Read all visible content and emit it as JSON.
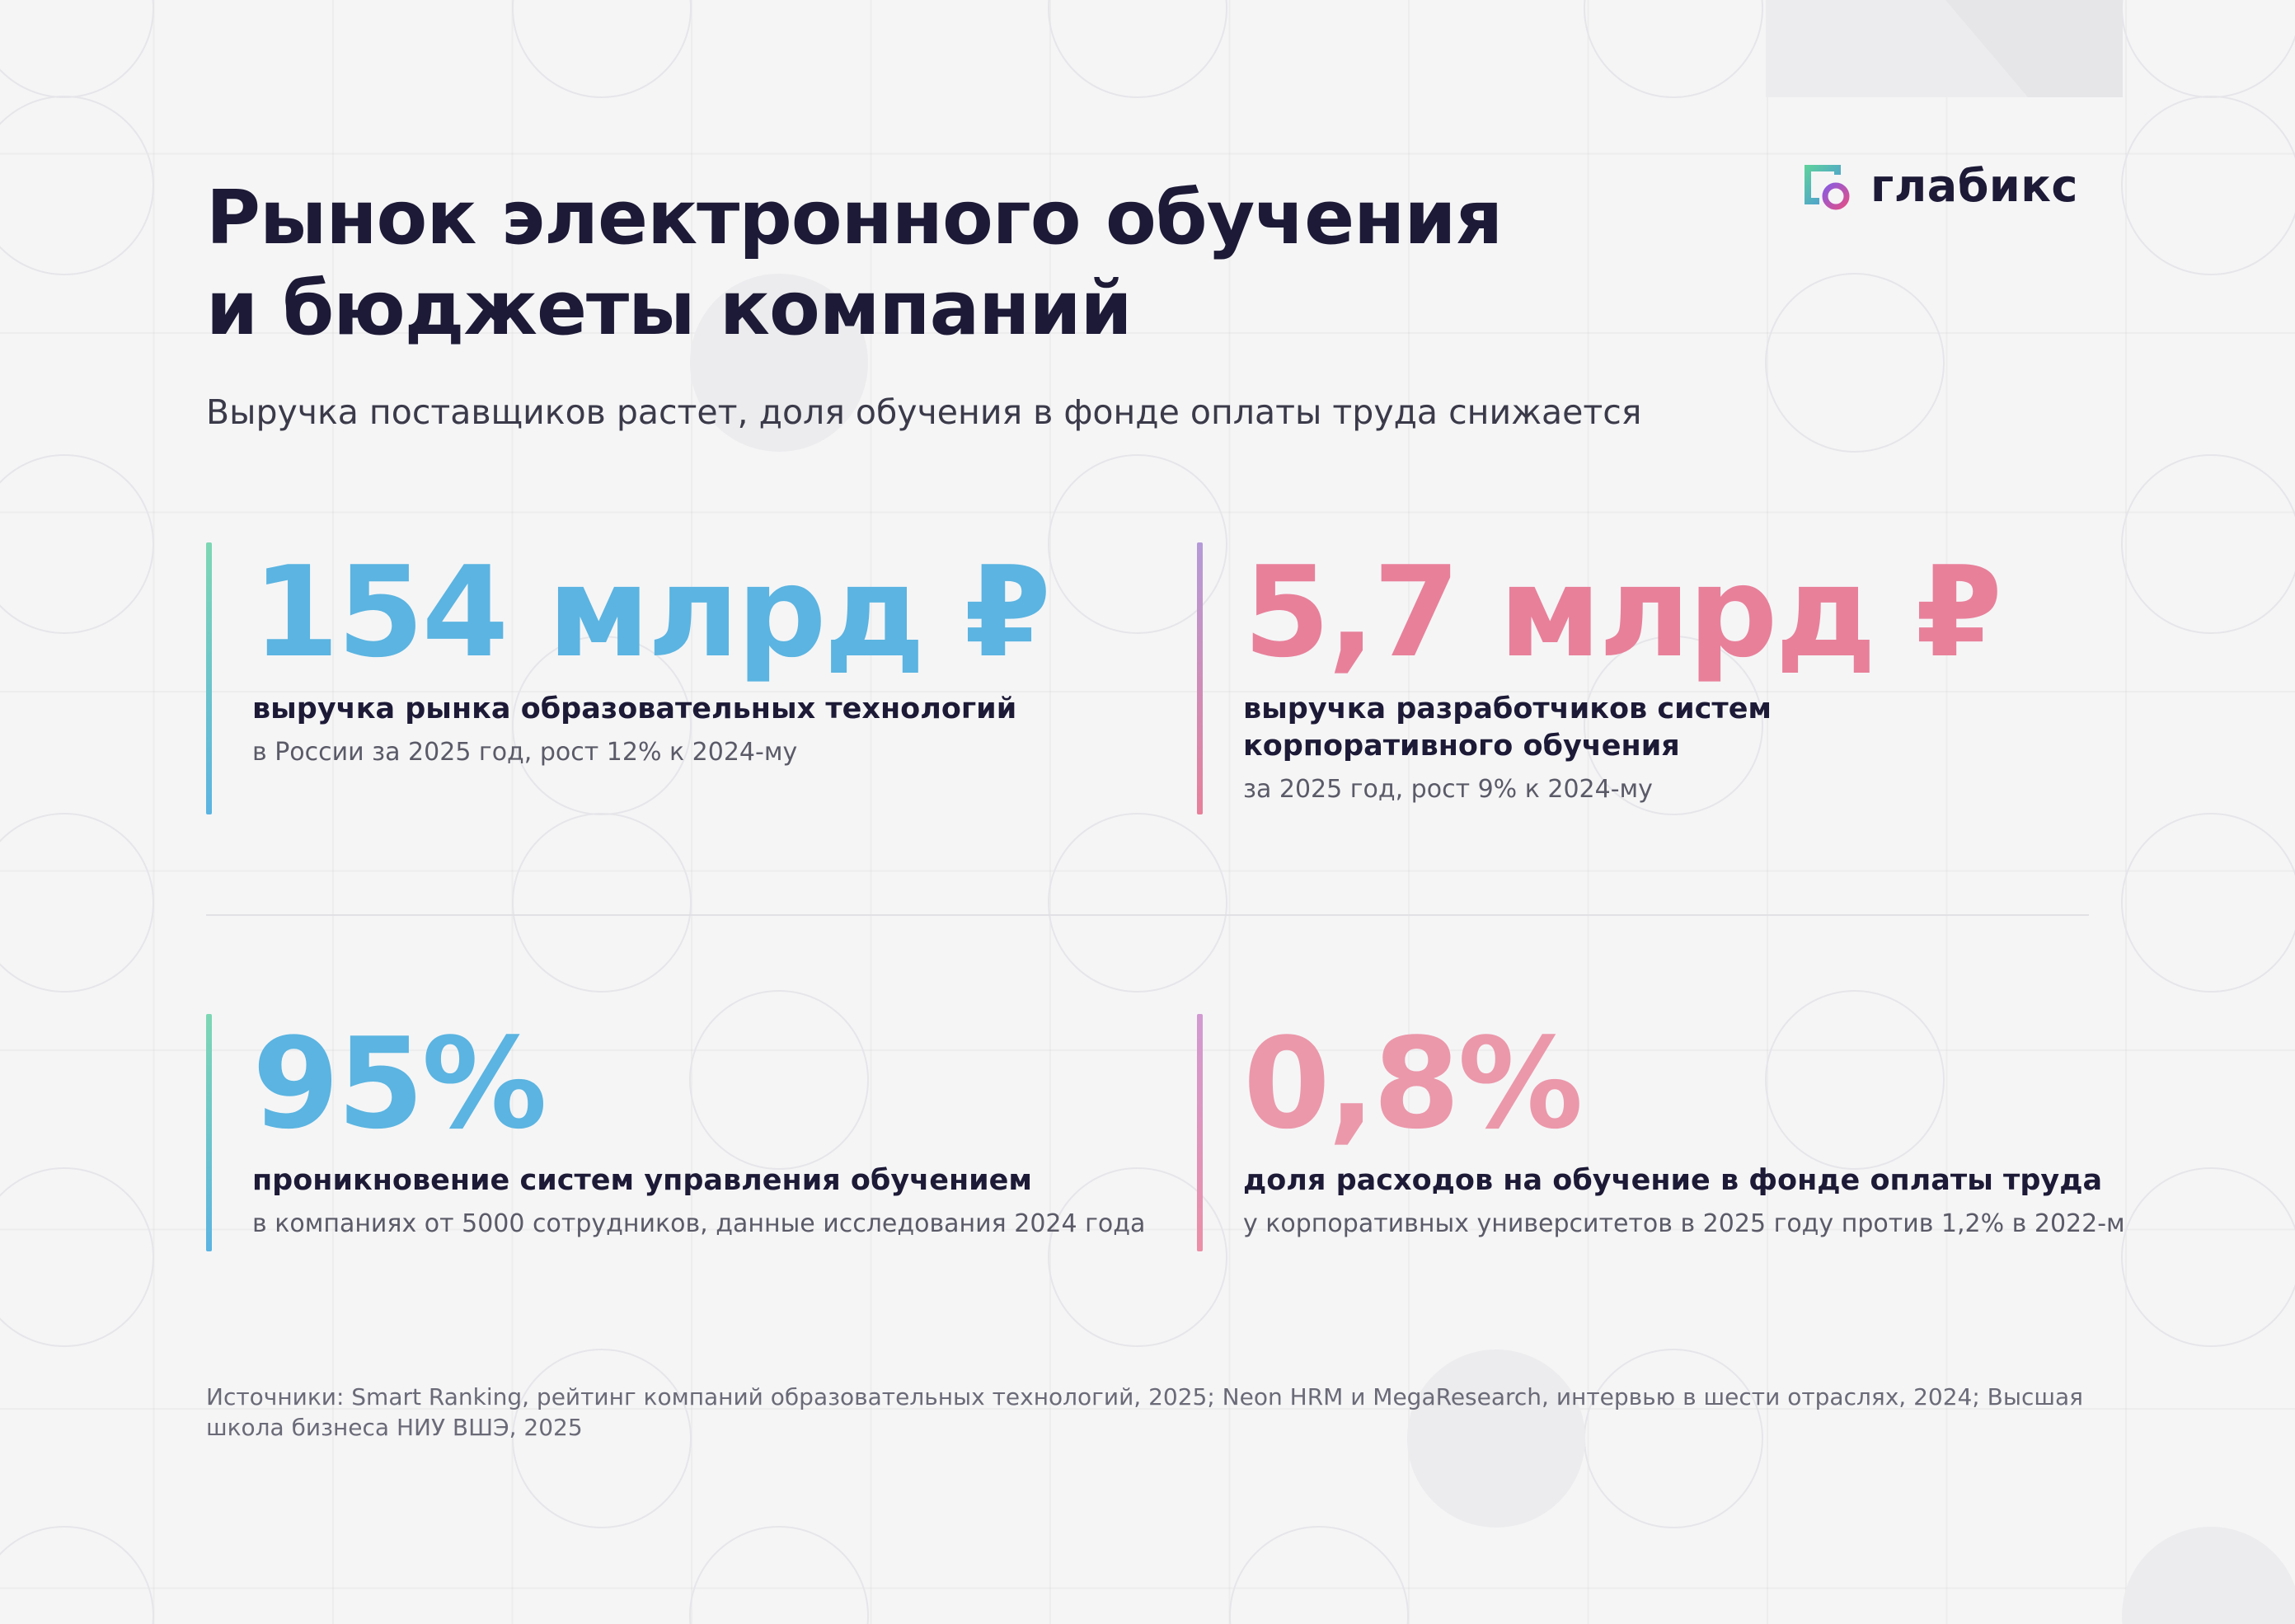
{
  "brand": {
    "name": "глабикс",
    "colors": {
      "text": "#1c1a36",
      "blue": "#5bb4e1",
      "pink": "#e8809a",
      "teal": "#7dd7b4",
      "purple": "#b49ad8"
    }
  },
  "header": {
    "title_line1": "Рынок электронного обучения",
    "title_line2": "и бюджеты компаний",
    "subtitle": "Выручка поставщиков растет, доля обучения в фонде оплаты труда снижается"
  },
  "stats": [
    {
      "value": "154 млрд ₽",
      "label": "выручка рынка образовательных технологий",
      "note": "в России за 2025 год, рост 12% к 2024-му",
      "accent": "blue"
    },
    {
      "value": "5,7 млрд ₽",
      "label": "выручка разработчиков систем корпоративного обучения",
      "note": "за 2025 год, рост 9% к 2024-му",
      "accent": "pink"
    },
    {
      "value": "95%",
      "label": "проникновение систем управления обучением",
      "note": "в компаниях от 5000 сотрудников, данные исследования 2024 года",
      "accent": "blue"
    },
    {
      "value": "0,8%",
      "label": "доля расходов на обучение в фонде оплаты труда",
      "note": "у корпоративных университетов в 2025 году против 1,2% в 2022-м",
      "accent": "pink"
    }
  ],
  "footer": {
    "sources": "Источники: Smart Ranking, рейтинг компаний образовательных технологий, 2025; Neon HRM и MegaResearch, интервью в шести отраслях, 2024; Высшая школа бизнеса НИУ ВШЭ, 2025"
  }
}
